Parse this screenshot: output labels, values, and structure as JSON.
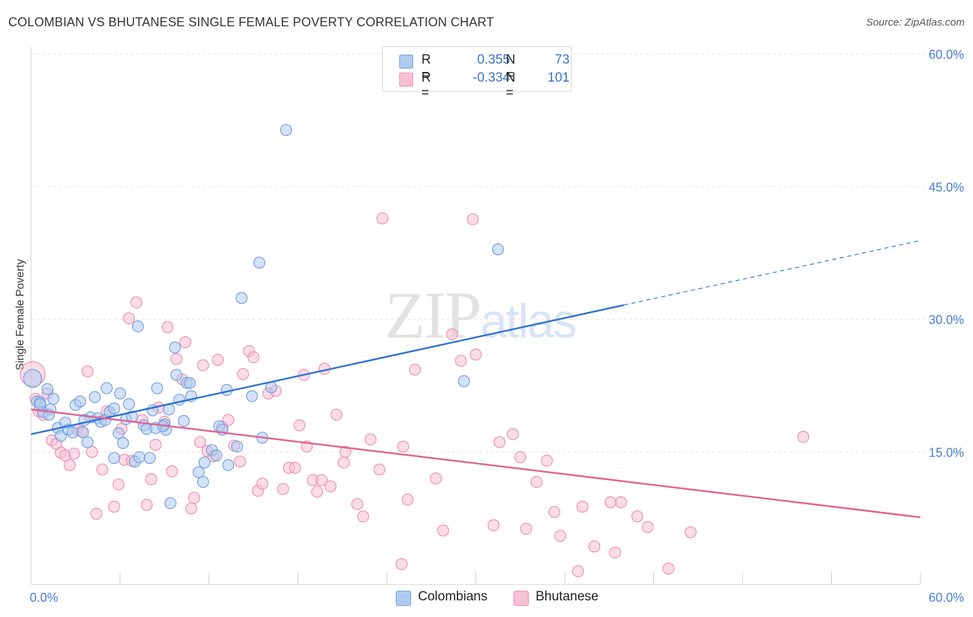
{
  "header": {
    "title": "COLOMBIAN VS BHUTANESE SINGLE FEMALE POVERTY CORRELATION CHART",
    "source": "Source: ZipAtlas.com"
  },
  "watermark": {
    "zip": "ZIP",
    "atlas": "atlas"
  },
  "legend": {
    "rows": [
      {
        "r_label": "R =",
        "r_value": "0.355",
        "n_label": "N =",
        "n_value": "73"
      },
      {
        "r_label": "R =",
        "r_value": "-0.334",
        "n_label": "N =",
        "n_value": "101"
      }
    ]
  },
  "bottom_legend": {
    "items": [
      "Colombians",
      "Bhutanese"
    ]
  },
  "colors": {
    "colombians_fill": "#aecbef",
    "colombians_stroke": "#6f9fe0",
    "colombians_line": "#2f72d0",
    "bhutanese_fill": "#f7c0d4",
    "bhutanese_stroke": "#ec8fb0",
    "bhutanese_line": "#e0628f",
    "grid": "#e3e3e3",
    "tick_label": "#4a7fd4"
  },
  "chart_data": {
    "type": "scatter",
    "title": "COLOMBIAN VS BHUTANESE SINGLE FEMALE POVERTY CORRELATION CHART",
    "xlabel": "",
    "ylabel": "Single Female Poverty",
    "xlim": [
      0,
      60
    ],
    "ylim": [
      0,
      60
    ],
    "x_tick_labels": [
      "0.0%",
      "60.0%"
    ],
    "y_ticks": [
      15,
      30,
      45,
      60
    ],
    "y_tick_labels": [
      "15.0%",
      "30.0%",
      "45.0%",
      "60.0%"
    ],
    "grid": true,
    "legend_position": "top-center",
    "series": [
      {
        "name": "Colombians",
        "stats": {
          "R": 0.355,
          "N": 73
        },
        "trend": {
          "x0": 0,
          "y0": 17.0,
          "x1": 40.0,
          "y1": 31.6,
          "dashed_to_x": 60,
          "dashed_to_y": 38.9
        },
        "points": [
          [
            0.1,
            23.3
          ],
          [
            0.4,
            20.7
          ],
          [
            0.6,
            20.6
          ],
          [
            0.8,
            19.5
          ],
          [
            1.1,
            22.1
          ],
          [
            1.3,
            19.8
          ],
          [
            1.5,
            21.0
          ],
          [
            1.8,
            17.7
          ],
          [
            2.0,
            16.8
          ],
          [
            2.3,
            18.3
          ],
          [
            2.5,
            17.5
          ],
          [
            2.8,
            17.2
          ],
          [
            3.0,
            20.3
          ],
          [
            3.3,
            20.7
          ],
          [
            3.5,
            17.2
          ],
          [
            3.8,
            16.1
          ],
          [
            4.0,
            18.9
          ],
          [
            4.3,
            21.2
          ],
          [
            4.5,
            18.8
          ],
          [
            4.7,
            18.4
          ],
          [
            5.0,
            18.6
          ],
          [
            5.1,
            22.2
          ],
          [
            5.3,
            19.5
          ],
          [
            5.6,
            19.9
          ],
          [
            5.6,
            14.3
          ],
          [
            5.9,
            17.1
          ],
          [
            6.0,
            21.6
          ],
          [
            6.2,
            16.0
          ],
          [
            6.4,
            18.7
          ],
          [
            6.6,
            20.4
          ],
          [
            6.8,
            19.0
          ],
          [
            7.0,
            13.9
          ],
          [
            7.2,
            29.2
          ],
          [
            7.3,
            14.4
          ],
          [
            7.6,
            18.0
          ],
          [
            7.8,
            17.6
          ],
          [
            8.0,
            14.3
          ],
          [
            8.2,
            19.7
          ],
          [
            8.4,
            17.7
          ],
          [
            8.5,
            22.2
          ],
          [
            9.0,
            18.1
          ],
          [
            9.1,
            17.5
          ],
          [
            9.3,
            19.8
          ],
          [
            9.4,
            9.2
          ],
          [
            9.7,
            26.8
          ],
          [
            9.8,
            23.7
          ],
          [
            10.0,
            20.9
          ],
          [
            10.3,
            18.5
          ],
          [
            10.5,
            22.8
          ],
          [
            10.7,
            22.8
          ],
          [
            10.8,
            21.3
          ],
          [
            11.3,
            12.7
          ],
          [
            11.6,
            11.6
          ],
          [
            11.7,
            13.8
          ],
          [
            12.2,
            15.2
          ],
          [
            12.5,
            14.6
          ],
          [
            12.7,
            17.9
          ],
          [
            12.9,
            17.5
          ],
          [
            13.2,
            22.0
          ],
          [
            13.3,
            13.5
          ],
          [
            13.9,
            15.6
          ],
          [
            14.2,
            32.4
          ],
          [
            14.9,
            21.3
          ],
          [
            15.4,
            36.4
          ],
          [
            15.6,
            16.6
          ],
          [
            16.2,
            22.3
          ],
          [
            17.2,
            51.4
          ],
          [
            29.2,
            23.0
          ],
          [
            31.5,
            37.9
          ],
          [
            0.6,
            20.4
          ],
          [
            1.2,
            19.2
          ],
          [
            3.6,
            18.6
          ],
          [
            8.9,
            17.9
          ]
        ]
      },
      {
        "name": "Bhutanese",
        "stats": {
          "R": -0.334,
          "N": 101
        },
        "trend": {
          "x0": 0,
          "y0": 19.8,
          "x1": 60,
          "y1": 7.6
        },
        "points": [
          [
            0.1,
            23.8
          ],
          [
            0.3,
            21.0
          ],
          [
            0.5,
            19.6
          ],
          [
            0.8,
            19.2
          ],
          [
            1.1,
            21.6
          ],
          [
            1.4,
            16.3
          ],
          [
            1.7,
            15.9
          ],
          [
            2.0,
            14.9
          ],
          [
            2.3,
            14.6
          ],
          [
            2.6,
            13.5
          ],
          [
            2.9,
            14.8
          ],
          [
            3.1,
            17.5
          ],
          [
            3.4,
            17.3
          ],
          [
            3.8,
            24.1
          ],
          [
            4.1,
            15.0
          ],
          [
            4.4,
            8.0
          ],
          [
            4.8,
            13.0
          ],
          [
            5.1,
            19.6
          ],
          [
            5.6,
            8.8
          ],
          [
            5.9,
            11.3
          ],
          [
            6.1,
            17.6
          ],
          [
            6.3,
            14.1
          ],
          [
            6.6,
            30.1
          ],
          [
            6.8,
            14.0
          ],
          [
            7.1,
            31.9
          ],
          [
            7.5,
            18.6
          ],
          [
            7.8,
            9.0
          ],
          [
            8.1,
            11.9
          ],
          [
            8.4,
            15.8
          ],
          [
            8.6,
            20.0
          ],
          [
            9.0,
            18.4
          ],
          [
            9.2,
            29.1
          ],
          [
            9.5,
            12.8
          ],
          [
            9.8,
            25.5
          ],
          [
            10.2,
            23.2
          ],
          [
            10.4,
            27.4
          ],
          [
            10.8,
            8.6
          ],
          [
            11.0,
            9.8
          ],
          [
            11.4,
            16.1
          ],
          [
            11.6,
            24.8
          ],
          [
            11.9,
            15.1
          ],
          [
            12.3,
            14.5
          ],
          [
            12.6,
            25.4
          ],
          [
            12.9,
            17.8
          ],
          [
            13.3,
            18.6
          ],
          [
            13.7,
            15.7
          ],
          [
            14.1,
            13.9
          ],
          [
            14.3,
            23.8
          ],
          [
            14.7,
            26.4
          ],
          [
            15.0,
            25.7
          ],
          [
            15.3,
            10.6
          ],
          [
            15.6,
            11.4
          ],
          [
            16.0,
            21.6
          ],
          [
            16.5,
            21.9
          ],
          [
            17.0,
            10.8
          ],
          [
            17.4,
            13.2
          ],
          [
            17.8,
            13.2
          ],
          [
            18.1,
            18.0
          ],
          [
            18.4,
            23.7
          ],
          [
            18.6,
            15.6
          ],
          [
            19.0,
            11.8
          ],
          [
            19.3,
            10.5
          ],
          [
            19.6,
            11.8
          ],
          [
            19.8,
            24.4
          ],
          [
            20.2,
            11.1
          ],
          [
            20.6,
            19.2
          ],
          [
            21.1,
            13.8
          ],
          [
            21.2,
            15.0
          ],
          [
            22.0,
            9.1
          ],
          [
            22.4,
            7.7
          ],
          [
            22.9,
            16.4
          ],
          [
            23.5,
            13.0
          ],
          [
            23.7,
            41.4
          ],
          [
            25.0,
            2.3
          ],
          [
            25.1,
            15.6
          ],
          [
            25.4,
            9.6
          ],
          [
            25.9,
            24.3
          ],
          [
            27.3,
            12.0
          ],
          [
            27.8,
            6.1
          ],
          [
            28.4,
            28.3
          ],
          [
            29.0,
            25.3
          ],
          [
            29.8,
            41.3
          ],
          [
            30.0,
            26.0
          ],
          [
            31.2,
            6.7
          ],
          [
            31.6,
            16.1
          ],
          [
            32.5,
            17.0
          ],
          [
            33.0,
            14.4
          ],
          [
            33.4,
            6.3
          ],
          [
            34.1,
            11.6
          ],
          [
            34.8,
            14.0
          ],
          [
            35.3,
            8.2
          ],
          [
            35.7,
            5.5
          ],
          [
            36.9,
            1.5
          ],
          [
            37.2,
            8.8
          ],
          [
            38.0,
            4.3
          ],
          [
            39.1,
            9.3
          ],
          [
            39.4,
            3.6
          ],
          [
            39.8,
            9.3
          ],
          [
            40.9,
            7.7
          ],
          [
            41.6,
            6.5
          ],
          [
            43.0,
            1.8
          ],
          [
            44.5,
            5.9
          ],
          [
            52.1,
            16.7
          ]
        ]
      }
    ]
  }
}
